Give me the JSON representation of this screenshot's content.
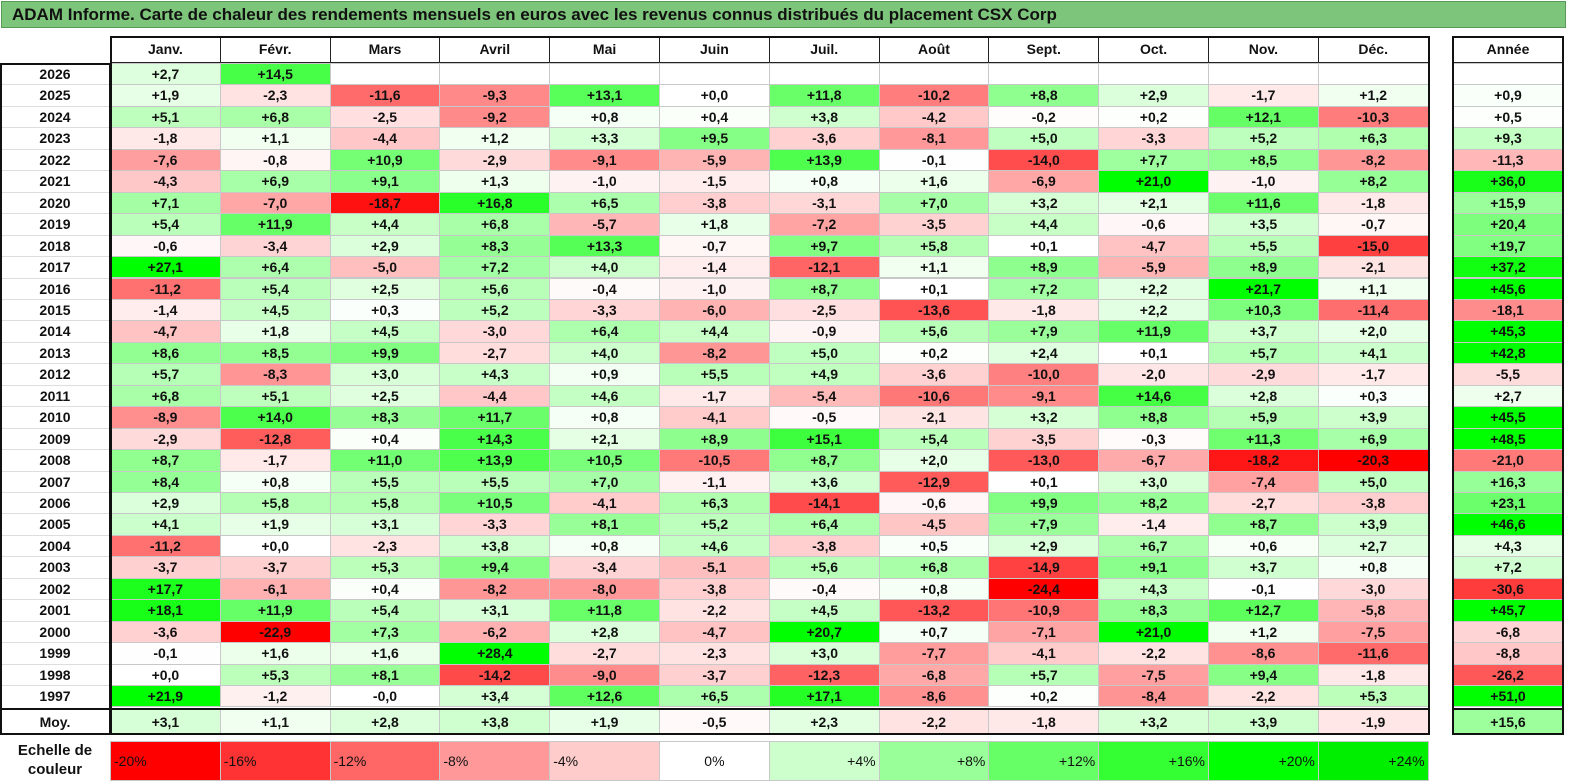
{
  "title": "ADAM Informe. Carte de chaleur des rendements mensuels en euros avec les revenus connus distribués du placement CSX Corp",
  "chart_data": {
    "type": "heatmap",
    "title": "ADAM Informe. Carte de chaleur des rendements mensuels en euros avec les revenus connus distribués du placement CSX Corp",
    "columns": [
      "Janv.",
      "Févr.",
      "Mars",
      "Avril",
      "Mai",
      "Juin",
      "Juil.",
      "Août",
      "Sept.",
      "Oct.",
      "Nov.",
      "Déc."
    ],
    "annual_header": "Année",
    "rows": [
      {
        "year": "2026",
        "values": [
          "+2,7",
          "+14,5",
          "",
          "",
          "",
          "",
          "",
          "",
          "",
          "",
          "",
          ""
        ],
        "annual": ""
      },
      {
        "year": "2025",
        "values": [
          "+1,9",
          "-2,3",
          "-11,6",
          "-9,3",
          "+13,1",
          "+0,0",
          "+11,8",
          "-10,2",
          "+8,8",
          "+2,9",
          "-1,7",
          "+1,2"
        ],
        "annual": "+0,9"
      },
      {
        "year": "2024",
        "values": [
          "+5,1",
          "+6,8",
          "-2,5",
          "-9,2",
          "+0,8",
          "+0,4",
          "+3,8",
          "-4,2",
          "-0,2",
          "+0,2",
          "+12,1",
          "-10,3"
        ],
        "annual": "+0,5"
      },
      {
        "year": "2023",
        "values": [
          "-1,8",
          "+1,1",
          "-4,4",
          "+1,2",
          "+3,3",
          "+9,5",
          "-3,6",
          "-8,1",
          "+5,0",
          "-3,3",
          "+5,2",
          "+6,3"
        ],
        "annual": "+9,3"
      },
      {
        "year": "2022",
        "values": [
          "-7,6",
          "-0,8",
          "+10,9",
          "-2,9",
          "-9,1",
          "-5,9",
          "+13,9",
          "-0,1",
          "-14,0",
          "+7,7",
          "+8,5",
          "-8,2"
        ],
        "annual": "-11,3"
      },
      {
        "year": "2021",
        "values": [
          "-4,3",
          "+6,9",
          "+9,1",
          "+1,3",
          "-1,0",
          "-1,5",
          "+0,8",
          "+1,6",
          "-6,9",
          "+21,0",
          "-1,0",
          "+8,2"
        ],
        "annual": "+36,0"
      },
      {
        "year": "2020",
        "values": [
          "+7,1",
          "-7,0",
          "-18,7",
          "+16,8",
          "+6,5",
          "-3,8",
          "-3,1",
          "+7,0",
          "+3,2",
          "+2,1",
          "+11,6",
          "-1,8"
        ],
        "annual": "+15,9"
      },
      {
        "year": "2019",
        "values": [
          "+5,4",
          "+11,9",
          "+4,4",
          "+6,8",
          "-5,7",
          "+1,8",
          "-7,2",
          "-3,5",
          "+4,4",
          "-0,6",
          "+3,5",
          "-0,7"
        ],
        "annual": "+20,4"
      },
      {
        "year": "2018",
        "values": [
          "-0,6",
          "-3,4",
          "+2,9",
          "+8,3",
          "+13,3",
          "-0,7",
          "+9,7",
          "+5,8",
          "+0,1",
          "-4,7",
          "+5,5",
          "-15,0"
        ],
        "annual": "+19,7"
      },
      {
        "year": "2017",
        "values": [
          "+27,1",
          "+6,4",
          "-5,0",
          "+7,2",
          "+4,0",
          "-1,4",
          "-12,1",
          "+1,1",
          "+8,9",
          "-5,9",
          "+8,9",
          "-2,1"
        ],
        "annual": "+37,2"
      },
      {
        "year": "2016",
        "values": [
          "-11,2",
          "+5,4",
          "+2,5",
          "+5,6",
          "-0,4",
          "-1,0",
          "+8,7",
          "+0,1",
          "+7,2",
          "+2,2",
          "+21,7",
          "+1,1"
        ],
        "annual": "+45,6"
      },
      {
        "year": "2015",
        "values": [
          "-1,4",
          "+4,5",
          "+0,3",
          "+5,2",
          "-3,3",
          "-6,0",
          "-2,5",
          "-13,6",
          "-1,8",
          "+2,2",
          "+10,3",
          "-11,4"
        ],
        "annual": "-18,1"
      },
      {
        "year": "2014",
        "values": [
          "-4,7",
          "+1,8",
          "+4,5",
          "-3,0",
          "+6,4",
          "+4,4",
          "-0,9",
          "+5,6",
          "+7,9",
          "+11,9",
          "+3,7",
          "+2,0"
        ],
        "annual": "+45,3"
      },
      {
        "year": "2013",
        "values": [
          "+8,6",
          "+8,5",
          "+9,9",
          "-2,7",
          "+4,0",
          "-8,2",
          "+5,0",
          "+0,2",
          "+2,4",
          "+0,1",
          "+5,7",
          "+4,1"
        ],
        "annual": "+42,8"
      },
      {
        "year": "2012",
        "values": [
          "+5,7",
          "-8,3",
          "+3,0",
          "+4,3",
          "+0,9",
          "+5,5",
          "+4,9",
          "-3,6",
          "-10,0",
          "-2,0",
          "-2,9",
          "-1,7"
        ],
        "annual": "-5,5"
      },
      {
        "year": "2011",
        "values": [
          "+6,8",
          "+5,1",
          "+2,5",
          "-4,4",
          "+4,6",
          "-1,7",
          "-5,4",
          "-10,6",
          "-9,1",
          "+14,6",
          "+2,8",
          "+0,3"
        ],
        "annual": "+2,7"
      },
      {
        "year": "2010",
        "values": [
          "-8,9",
          "+14,0",
          "+8,3",
          "+11,7",
          "+0,8",
          "-4,1",
          "-0,5",
          "-2,1",
          "+3,2",
          "+8,8",
          "+5,9",
          "+3,9"
        ],
        "annual": "+45,5"
      },
      {
        "year": "2009",
        "values": [
          "-2,9",
          "-12,8",
          "+0,4",
          "+14,3",
          "+2,1",
          "+8,9",
          "+15,1",
          "+5,4",
          "-3,5",
          "-0,3",
          "+11,3",
          "+6,9"
        ],
        "annual": "+48,5"
      },
      {
        "year": "2008",
        "values": [
          "+8,7",
          "-1,7",
          "+11,0",
          "+13,9",
          "+10,5",
          "-10,5",
          "+8,7",
          "+2,0",
          "-13,0",
          "-6,7",
          "-18,2",
          "-20,3"
        ],
        "annual": "-21,0"
      },
      {
        "year": "2007",
        "values": [
          "+8,4",
          "+0,8",
          "+5,5",
          "+5,5",
          "+7,0",
          "-1,1",
          "+3,6",
          "-12,9",
          "+0,1",
          "+3,0",
          "-7,4",
          "+5,0"
        ],
        "annual": "+16,3"
      },
      {
        "year": "2006",
        "values": [
          "+2,9",
          "+5,8",
          "+5,8",
          "+10,5",
          "-4,1",
          "+6,3",
          "-14,1",
          "-0,6",
          "+9,9",
          "+8,2",
          "-2,7",
          "-3,8"
        ],
        "annual": "+23,1"
      },
      {
        "year": "2005",
        "values": [
          "+4,1",
          "+1,9",
          "+3,1",
          "-3,3",
          "+8,1",
          "+5,2",
          "+6,4",
          "-4,5",
          "+7,9",
          "-1,4",
          "+8,7",
          "+3,9"
        ],
        "annual": "+46,6"
      },
      {
        "year": "2004",
        "values": [
          "-11,2",
          "+0,0",
          "-2,3",
          "+3,8",
          "+0,8",
          "+4,6",
          "-3,8",
          "+0,5",
          "+2,9",
          "+6,7",
          "+0,6",
          "+2,7"
        ],
        "annual": "+4,3"
      },
      {
        "year": "2003",
        "values": [
          "-3,7",
          "-3,7",
          "+5,3",
          "+9,4",
          "-3,4",
          "-5,1",
          "+5,6",
          "+6,8",
          "-14,9",
          "+9,1",
          "+3,7",
          "+0,8"
        ],
        "annual": "+7,2"
      },
      {
        "year": "2002",
        "values": [
          "+17,7",
          "-6,1",
          "+0,4",
          "-8,2",
          "-8,0",
          "-3,8",
          "-0,4",
          "+0,8",
          "-24,4",
          "+4,3",
          "-0,1",
          "-3,0"
        ],
        "annual": "-30,6"
      },
      {
        "year": "2001",
        "values": [
          "+18,1",
          "+11,9",
          "+5,4",
          "+3,1",
          "+11,8",
          "-2,2",
          "+4,5",
          "-13,2",
          "-10,9",
          "+8,3",
          "+12,7",
          "-5,8"
        ],
        "annual": "+45,7"
      },
      {
        "year": "2000",
        "values": [
          "-3,6",
          "-22,9",
          "+7,3",
          "-6,2",
          "+2,8",
          "-4,7",
          "+20,7",
          "+0,7",
          "-7,1",
          "+21,0",
          "+1,2",
          "-7,5"
        ],
        "annual": "-6,8"
      },
      {
        "year": "1999",
        "values": [
          "-0,1",
          "+1,6",
          "+1,6",
          "+28,4",
          "-2,7",
          "-2,3",
          "+3,0",
          "-7,7",
          "-4,1",
          "-2,2",
          "-8,6",
          "-11,6"
        ],
        "annual": "-8,8"
      },
      {
        "year": "1998",
        "values": [
          "+0,0",
          "+5,3",
          "+8,1",
          "-14,2",
          "-9,0",
          "-3,7",
          "-12,3",
          "-6,8",
          "+5,7",
          "-7,5",
          "+9,4",
          "-1,8"
        ],
        "annual": "-26,2"
      },
      {
        "year": "1997",
        "values": [
          "+21,9",
          "-1,2",
          "-0,0",
          "+3,4",
          "+12,6",
          "+6,5",
          "+17,1",
          "-8,6",
          "+0,2",
          "-8,4",
          "-2,2",
          "+5,3"
        ],
        "annual": "+51,0"
      }
    ],
    "average": {
      "label": "Moy.",
      "values": [
        "+3,1",
        "+1,1",
        "+2,8",
        "+3,8",
        "+1,9",
        "-0,5",
        "+2,3",
        "-2,2",
        "-1,8",
        "+3,2",
        "+3,9",
        "-1,9"
      ],
      "annual": "+15,6"
    },
    "color_scale": {
      "label": "Echelle de couleur",
      "stops": [
        {
          "label": "-20%",
          "value": -20,
          "color": "#ff0000",
          "align": "left"
        },
        {
          "label": "-16%",
          "value": -16,
          "color": "#ff3333",
          "align": "left"
        },
        {
          "label": "-12%",
          "value": -12,
          "color": "#ff6666",
          "align": "left"
        },
        {
          "label": "-8%",
          "value": -8,
          "color": "#ff9999",
          "align": "left"
        },
        {
          "label": "-4%",
          "value": -4,
          "color": "#ffcccc",
          "align": "left"
        },
        {
          "label": "0%",
          "value": 0,
          "color": "#ffffff",
          "align": "center"
        },
        {
          "label": "+4%",
          "value": 4,
          "color": "#ccffcc",
          "align": "right"
        },
        {
          "label": "+8%",
          "value": 8,
          "color": "#99ff99",
          "align": "right"
        },
        {
          "label": "+12%",
          "value": 12,
          "color": "#66ff66",
          "align": "right"
        },
        {
          "label": "+16%",
          "value": 16,
          "color": "#33ff33",
          "align": "right"
        },
        {
          "label": "+20%",
          "value": 20,
          "color": "#00ff00",
          "align": "right"
        },
        {
          "label": "+24%",
          "value": 24,
          "color": "#00ee00",
          "align": "right"
        }
      ]
    }
  }
}
